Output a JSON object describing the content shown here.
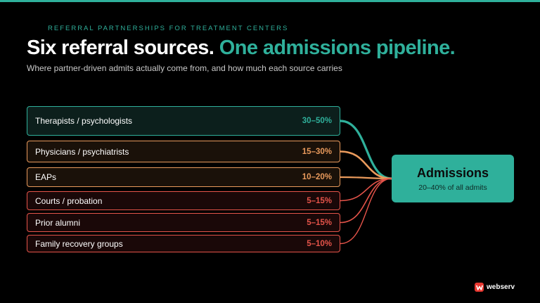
{
  "header": {
    "eyebrow": "REFERRAL PARTNERSHIPS FOR TREATMENT CENTERS",
    "title_main": "Six referral sources.",
    "title_accent": "One admissions pipeline.",
    "subtitle": "Where partner-driven admits actually come from, and how much each source carries"
  },
  "sources": [
    {
      "label": "Therapists / psychologists",
      "range": "30–50%",
      "color": "#2fb09b",
      "fill": "#0c1f1c"
    },
    {
      "label": "Physicians / psychiatrists",
      "range": "15–30%",
      "color": "#e99a5c",
      "fill": "#1a1109"
    },
    {
      "label": "EAPs",
      "range": "10–20%",
      "color": "#e99a5c",
      "fill": "#1a1109"
    },
    {
      "label": "Courts / probation",
      "range": "5–15%",
      "color": "#e6544a",
      "fill": "#1a0808"
    },
    {
      "label": "Prior alumni",
      "range": "5–15%",
      "color": "#e6544a",
      "fill": "#1a0808"
    },
    {
      "label": "Family recovery groups",
      "range": "5–10%",
      "color": "#e6544a",
      "fill": "#1a0808"
    }
  ],
  "target": {
    "title": "Admissions",
    "subtitle": "20–40% of all admits",
    "color": "#2fb09b"
  },
  "brand": {
    "name": "webserv",
    "icon": "webserv-logo-icon"
  }
}
